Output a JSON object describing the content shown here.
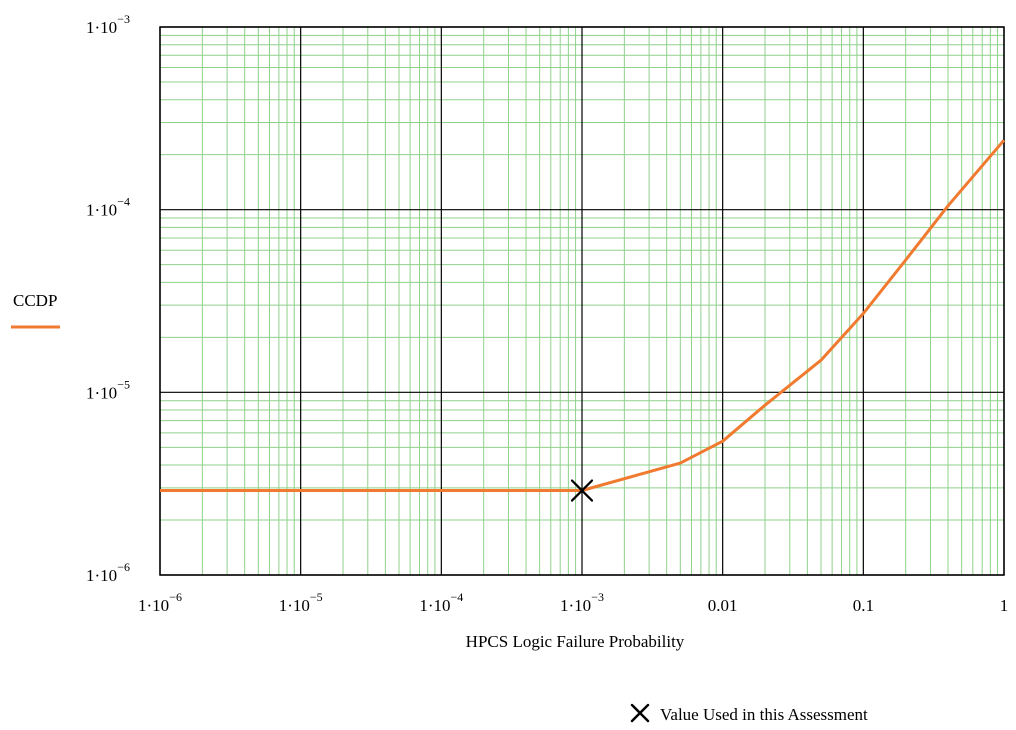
{
  "chart_data": {
    "type": "line",
    "title": "",
    "xlabel": "HPCS Logic Failure Probability",
    "ylabel": "",
    "x_scale": "log",
    "y_scale": "log",
    "xlim": [
      1e-06,
      1
    ],
    "ylim": [
      1e-06,
      0.001
    ],
    "grid": true,
    "legend": "left",
    "x_ticks": [
      {
        "value": 1e-06,
        "base": "1·10",
        "exp": "−6"
      },
      {
        "value": 1e-05,
        "base": "1·10",
        "exp": "−5"
      },
      {
        "value": 0.0001,
        "base": "1·10",
        "exp": "−4"
      },
      {
        "value": 0.001,
        "base": "1·10",
        "exp": "−3"
      },
      {
        "value": 0.01,
        "base": "0.01",
        "exp": ""
      },
      {
        "value": 0.1,
        "base": "0.1",
        "exp": ""
      },
      {
        "value": 1,
        "base": "1",
        "exp": ""
      }
    ],
    "y_ticks": [
      {
        "value": 1e-06,
        "base": "1·10",
        "exp": "−6"
      },
      {
        "value": 1e-05,
        "base": "1·10",
        "exp": "−5"
      },
      {
        "value": 0.0001,
        "base": "1·10",
        "exp": "−4"
      },
      {
        "value": 0.001,
        "base": "1·10",
        "exp": "−3"
      }
    ],
    "series": [
      {
        "name": "CCDP",
        "color": "#f07a30",
        "x": [
          1e-06,
          1e-05,
          0.0001,
          0.001,
          0.005,
          0.01,
          0.02,
          0.05,
          0.1,
          0.2,
          0.4,
          1
        ],
        "y": [
          2.9e-06,
          2.9e-06,
          2.9e-06,
          2.9e-06,
          4.1e-06,
          5.4e-06,
          8.5e-06,
          1.5e-05,
          2.7e-05,
          5.3e-05,
          0.000105,
          0.00024
        ]
      }
    ],
    "marker": {
      "label": "Value Used in this Assessment",
      "x": 0.001,
      "y": 2.9e-06,
      "symbol": "x-icon",
      "color": "#000000"
    }
  }
}
